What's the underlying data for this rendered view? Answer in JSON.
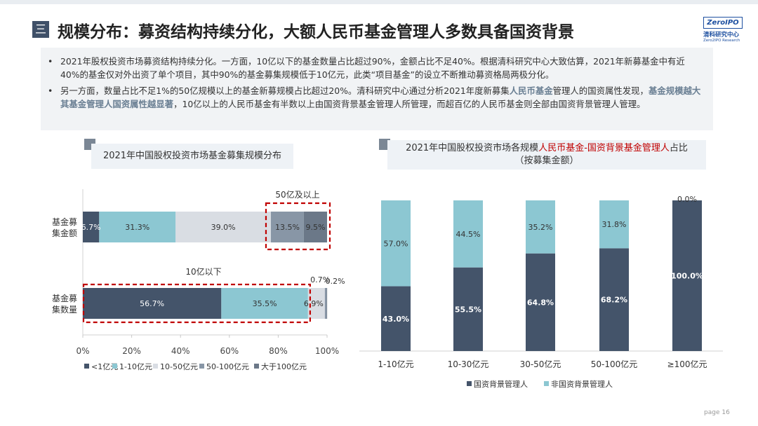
{
  "header": {
    "title": "规模分布：募资结构持续分化，大额人民币基金管理人多数具备国资背景",
    "title_icon": "三"
  },
  "logo": {
    "mark": "ZeroIPO",
    "cn": "清科研究中心",
    "en": "Zero2IPO Research"
  },
  "bullets": [
    {
      "text": "2021年股权投资市场募资结构持续分化。一方面，10亿以下的基金数量占比超过90%，金额占比不足40%。根据清科研究中心大致估算，2021年新募基金中有近40%的基金仅对外出资了单个项目，其中90%的基金募集规模低于10亿元，此类“项目基金”的设立不断推动募资格局两极分化。"
    },
    {
      "text_a": "另一方面，数量占比不足1%的50亿规模以上的基金新募规模占比超过20%。清科研究中心通过分析2021年度新募集",
      "text_b": "人民币基金",
      "text_c": "管理人的国资属性发现，",
      "text_d": "基金规模越大其基金管理人国资属性越显著",
      "text_e": "，10亿以上的人民币基金有半数以上由国资背景基金管理人所管理，而超百亿的人民币基金则全部由国资背景管理人管理。"
    }
  ],
  "chart_left_title": "2021年中国股权投资市场基金募集规模分布",
  "chart_right_title_a": "2021年中国股权投资市场各规模",
  "chart_right_title_b": "人民币基金-国资背景基金管理人",
  "chart_right_title_c": "占比",
  "chart_right_title_d": "（按募集金额）",
  "colors": {
    "c1": "#44546a",
    "c2": "#8cc7d2",
    "c3": "#d9dde3",
    "c4": "#8896a6",
    "c5": "#6b7888",
    "red": "#c00000"
  },
  "chart_data": [
    {
      "type": "bar",
      "orientation": "horizontal-stacked",
      "categories": [
        "基金募集金额",
        "基金募集数量"
      ],
      "category_display": [
        [
          "基金募",
          "集金额"
        ],
        [
          "基金募",
          "集数量"
        ]
      ],
      "series": [
        {
          "name": "<1亿元",
          "values": [
            6.7,
            56.7
          ],
          "labels": [
            "6.7%",
            "56.7%"
          ]
        },
        {
          "name": "1-10亿元",
          "values": [
            31.3,
            35.5
          ],
          "labels": [
            "31.3%",
            "35.5%"
          ]
        },
        {
          "name": "10-50亿元",
          "values": [
            39.0,
            6.9
          ],
          "labels": [
            "39.0%",
            "6.9%"
          ]
        },
        {
          "name": "50-100亿元",
          "values": [
            13.5,
            0.7
          ],
          "labels": [
            "13.5%",
            "0.7%"
          ]
        },
        {
          "name": "大于100亿元",
          "values": [
            9.5,
            0.2
          ],
          "labels": [
            "9.5%",
            "0.2%"
          ]
        }
      ],
      "xlim": [
        0,
        100
      ],
      "xticks": [
        "0%",
        "20%",
        "40%",
        "60%",
        "80%",
        "100%"
      ],
      "annotations": [
        "50亿及以上",
        "10亿以下"
      ],
      "legend": "bottom"
    },
    {
      "type": "bar",
      "orientation": "vertical-stacked-100",
      "categories": [
        "1-10亿元",
        "10-30亿元",
        "30-50亿元",
        "50-100亿元",
        "≥100亿元"
      ],
      "series": [
        {
          "name": "国资背景管理人",
          "values": [
            43.0,
            55.5,
            64.8,
            68.2,
            100.0
          ],
          "labels": [
            "43.0%",
            "55.5%",
            "64.8%",
            "68.2%",
            "100.0%"
          ]
        },
        {
          "name": "非国资背景管理人",
          "values": [
            57.0,
            44.5,
            35.2,
            31.8,
            0.0
          ],
          "labels": [
            "57.0%",
            "44.5%",
            "35.2%",
            "31.8%",
            "0.0%"
          ]
        }
      ],
      "ylim": [
        0,
        100
      ],
      "legend": "bottom"
    }
  ],
  "footer": {
    "page": "page  16"
  }
}
